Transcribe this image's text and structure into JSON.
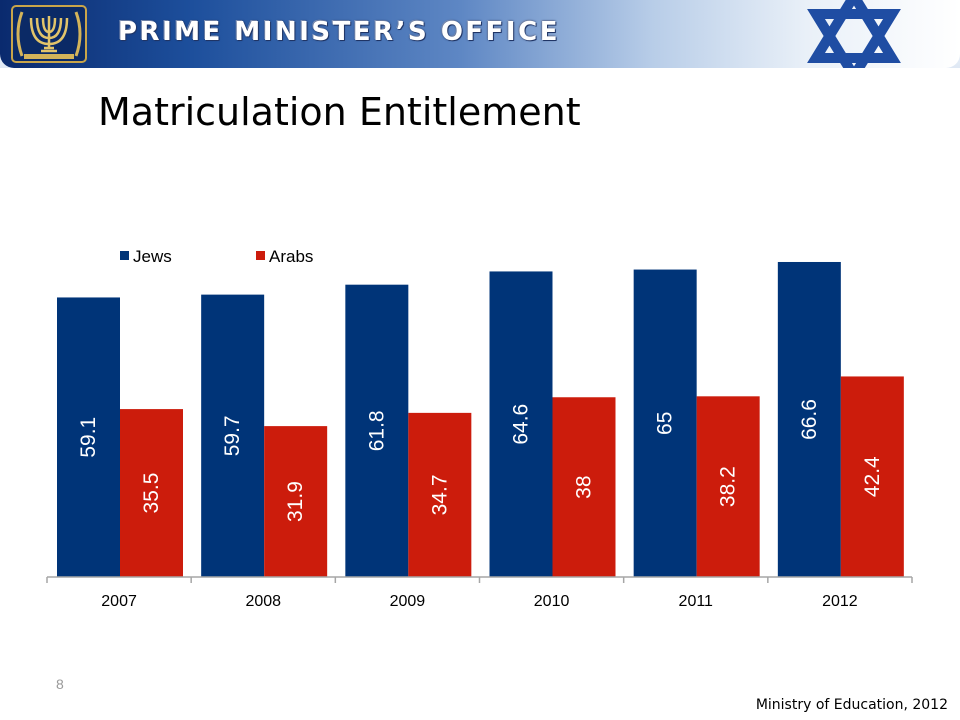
{
  "header": {
    "banner_title": "PRIME MINISTER’S OFFICE",
    "emblem_icon": "menorah-emblem-icon",
    "flag_icon": "star-of-david-icon"
  },
  "slide": {
    "title": "Matriculation Entitlement",
    "number": "8",
    "source": "Ministry of Education, 2012"
  },
  "colors": {
    "jews": "#003478",
    "arabs": "#cc1c0c",
    "banner_dark": "#0a2a6e",
    "star": "#1f4da3"
  },
  "chart_data": {
    "type": "bar",
    "categories": [
      "2007",
      "2008",
      "2009",
      "2010",
      "2011",
      "2012"
    ],
    "series": [
      {
        "name": "Jews",
        "values": [
          59.1,
          59.7,
          61.8,
          64.6,
          65,
          66.6
        ],
        "color": "#003478"
      },
      {
        "name": "Arabs",
        "values": [
          35.5,
          31.9,
          34.7,
          38,
          38.2,
          42.4
        ],
        "color": "#cc1c0c"
      }
    ],
    "data_labels": {
      "Jews": [
        "59.1",
        "59.7",
        "61.8",
        "64.6",
        "65",
        "66.6"
      ],
      "Arabs": [
        "35.5",
        "31.9",
        "34.7",
        "38",
        "38.2",
        "42.4"
      ]
    },
    "data_label_orientation": "vertical",
    "legend_position": "top-left",
    "grid": false,
    "ylim": [
      0,
      70
    ]
  }
}
